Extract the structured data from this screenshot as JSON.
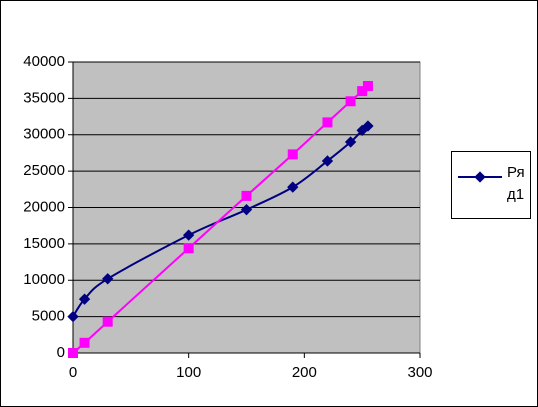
{
  "chart_data": {
    "type": "scatter",
    "series": [
      {
        "name": "Ряд1",
        "color": "#000080",
        "marker": "diamond",
        "smooth": true,
        "x": [
          0,
          10,
          30,
          100,
          150,
          190,
          220,
          240,
          250,
          255
        ],
        "values": [
          5000,
          7400,
          10200,
          16200,
          19700,
          22800,
          26400,
          29000,
          30600,
          31200
        ]
      },
      {
        "color": "#ff00ff",
        "marker": "square",
        "smooth": false,
        "x": [
          0,
          10,
          30,
          100,
          150,
          190,
          220,
          240,
          250,
          255
        ],
        "values": [
          0,
          1400,
          4300,
          14400,
          21600,
          27300,
          31700,
          34600,
          36000,
          36700
        ]
      }
    ],
    "xlim": [
      0,
      300
    ],
    "xticks": [
      0,
      100,
      200,
      300
    ],
    "ylim": [
      0,
      40000
    ],
    "yticks": [
      0,
      5000,
      10000,
      15000,
      20000,
      25000,
      30000,
      35000,
      40000
    ],
    "grid": true,
    "plot_background": "#c0c0c0"
  }
}
